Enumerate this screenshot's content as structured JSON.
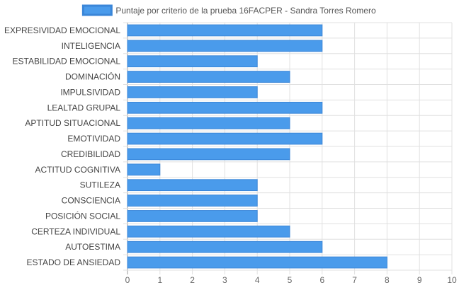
{
  "chart_data": {
    "type": "bar",
    "orientation": "horizontal",
    "legend": {
      "label": "Puntaje por criterio de la prueba 16FACPER - Sandra Torres Romero",
      "position": "top"
    },
    "categories": [
      "EXPRESIVIDAD EMOCIONAL",
      "INTELIGENCIA",
      "ESTABILIDAD EMOCIONAL",
      "DOMINACIÓN",
      "IMPULSIVIDAD",
      "LEALTAD GRUPAL",
      "APTITUD SITUACIONAL",
      "EMOTIVIDAD",
      "CREDIBILIDAD",
      "ACTITUD COGNITIVA",
      "SUTILEZA",
      "CONSCIENCIA",
      "POSICIÓN SOCIAL",
      "CERTEZA INDIVIDUAL",
      "AUTOESTIMA",
      "ESTADO DE ANSIEDAD"
    ],
    "values": [
      6,
      6,
      4,
      5,
      4,
      6,
      5,
      6,
      5,
      1,
      4,
      4,
      4,
      5,
      6,
      8
    ],
    "xlim": [
      0,
      10
    ],
    "xticks": [
      "0",
      "1",
      "2",
      "3",
      "4",
      "5",
      "6",
      "7",
      "8",
      "9",
      "10"
    ],
    "grid": true,
    "colors": {
      "bar_fill": "#4a9beb",
      "bar_stroke": "#3a86d8",
      "grid": "#e0e0e0",
      "axis": "#999999"
    }
  }
}
